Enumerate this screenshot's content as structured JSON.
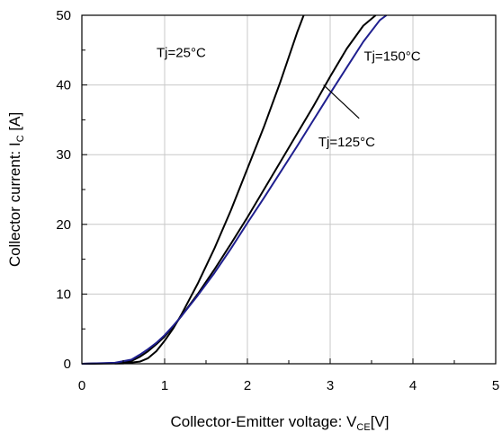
{
  "chart_data": {
    "type": "line",
    "title": "",
    "xlabel": {
      "main": "Collector-Emitter voltage: V",
      "sub": "CE",
      "unit": "[V]"
    },
    "ylabel": {
      "main": "Collector current: I",
      "sub": "C",
      "unit": " [A]"
    },
    "xlim": [
      0,
      5
    ],
    "ylim": [
      0,
      50
    ],
    "xticks": [
      0,
      1,
      2,
      3,
      4,
      5
    ],
    "yticks": [
      0,
      10,
      20,
      30,
      40,
      50
    ],
    "grid": true,
    "legend": "none",
    "series": [
      {
        "name": "Tj=25°C",
        "color": "#000000",
        "x": [
          0,
          0.5,
          0.7,
          0.8,
          0.9,
          1.0,
          1.1,
          1.2,
          1.4,
          1.6,
          1.8,
          2.0,
          2.2,
          2.4,
          2.6,
          2.68
        ],
        "y": [
          0,
          0.05,
          0.3,
          0.8,
          1.8,
          3.3,
          5.0,
          7.0,
          11.5,
          16.5,
          22.0,
          28.0,
          34.0,
          40.5,
          47.5,
          50
        ]
      },
      {
        "name": "Tj=125°C",
        "color": "#000000",
        "x": [
          0,
          0.4,
          0.6,
          0.7,
          0.8,
          0.9,
          1.0,
          1.1,
          1.2,
          1.4,
          1.6,
          1.8,
          2.0,
          2.2,
          2.4,
          2.6,
          2.8,
          3.0,
          3.2,
          3.4,
          3.55
        ],
        "y": [
          0,
          0.1,
          0.4,
          1.0,
          1.8,
          2.8,
          3.9,
          5.3,
          6.8,
          10.0,
          13.5,
          17.2,
          21.0,
          25.0,
          29.0,
          33.0,
          37.0,
          41.2,
          45.2,
          48.5,
          50
        ]
      },
      {
        "name": "Tj=150°C",
        "color": "#1f1f8f",
        "x": [
          0,
          0.4,
          0.6,
          0.7,
          0.8,
          0.9,
          1.0,
          1.1,
          1.2,
          1.4,
          1.6,
          1.8,
          2.0,
          2.2,
          2.4,
          2.6,
          2.8,
          3.0,
          3.2,
          3.4,
          3.6,
          3.68
        ],
        "y": [
          0,
          0.15,
          0.6,
          1.3,
          2.1,
          3.0,
          4.1,
          5.4,
          6.8,
          9.8,
          13.0,
          16.5,
          20.2,
          23.8,
          27.5,
          31.2,
          35.0,
          38.8,
          42.5,
          46.2,
          49.3,
          50
        ]
      }
    ],
    "annotations": [
      {
        "text": "Tj=25°C",
        "x": 1.2,
        "y": 44.0
      },
      {
        "text": "Tj=150°C",
        "x": 3.75,
        "y": 43.5
      },
      {
        "text": "Tj=125°C",
        "x": 3.2,
        "y": 31.2
      }
    ],
    "pointer_line": {
      "from": [
        2.92,
        40.0
      ],
      "to": [
        3.35,
        35.2
      ]
    }
  }
}
